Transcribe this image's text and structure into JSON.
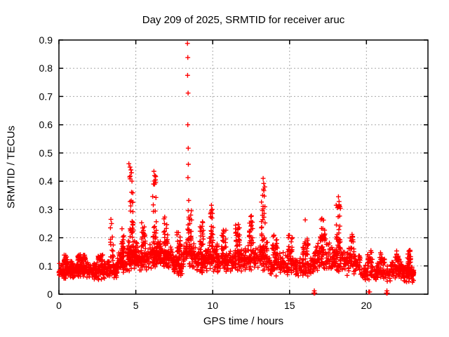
{
  "title": "Day 209 of 2025, SRMTID for receiver aruc",
  "background_color": "#ffffff",
  "chart_data": {
    "type": "scatter",
    "title": "Day 209 of 2025, SRMTID for receiver aruc",
    "xlabel": "GPS time / hours",
    "ylabel": "SRMTID / TECUs",
    "xlim": [
      0,
      24
    ],
    "ylim": [
      0,
      0.9
    ],
    "xtick_values": [
      0,
      5,
      10,
      15,
      20
    ],
    "xtick_labels": [
      "0",
      "5",
      "10",
      "15",
      "20"
    ],
    "ytick_values": [
      0,
      0.1,
      0.2,
      0.3,
      0.4,
      0.5,
      0.6,
      0.7,
      0.8,
      0.9
    ],
    "ytick_labels": [
      "0",
      "0.1",
      "0.2",
      "0.3",
      "0.4",
      "0.5",
      "0.6",
      "0.7",
      "0.8",
      "0.9"
    ],
    "grid": true,
    "grid_style": "dotted",
    "grid_color": "#a8a8a8",
    "marker": "plus",
    "marker_size_px": 7,
    "color": "#ff0000",
    "seed": 7,
    "legend": "none",
    "series": [
      {
        "name": "SRMTID",
        "cluster_format": "[x_start_hours, x_end_hours, n_points, y_bulk_low, y_bulk_high, y_tail_max, tail_peak_x_hours]",
        "clusters": [
          [
            0.0,
            0.7,
            90,
            0.05,
            0.11,
            0.14,
            0.5
          ],
          [
            0.7,
            2.2,
            180,
            0.055,
            0.12,
            0.14,
            1.5
          ],
          [
            2.2,
            3.2,
            110,
            0.05,
            0.12,
            0.145,
            2.7
          ],
          [
            3.2,
            3.8,
            70,
            0.05,
            0.13,
            0.22,
            3.4
          ],
          [
            3.8,
            4.4,
            80,
            0.07,
            0.16,
            0.24,
            4.2
          ],
          [
            4.4,
            5.1,
            120,
            0.08,
            0.2,
            0.44,
            4.7
          ],
          [
            5.1,
            5.9,
            100,
            0.08,
            0.17,
            0.26,
            5.5
          ],
          [
            5.9,
            6.6,
            110,
            0.08,
            0.2,
            0.42,
            6.2
          ],
          [
            6.6,
            7.4,
            100,
            0.08,
            0.18,
            0.3,
            6.9
          ],
          [
            7.4,
            8.1,
            90,
            0.06,
            0.15,
            0.22,
            7.8
          ],
          [
            8.1,
            8.9,
            100,
            0.08,
            0.19,
            0.3,
            8.5
          ],
          [
            8.9,
            9.6,
            90,
            0.07,
            0.17,
            0.26,
            9.3
          ],
          [
            9.6,
            10.3,
            95,
            0.08,
            0.19,
            0.3,
            9.9
          ],
          [
            10.3,
            11.2,
            95,
            0.07,
            0.16,
            0.23,
            10.7
          ],
          [
            11.2,
            12.1,
            100,
            0.07,
            0.17,
            0.25,
            11.6
          ],
          [
            12.1,
            12.9,
            90,
            0.08,
            0.18,
            0.28,
            12.5
          ],
          [
            12.9,
            13.6,
            85,
            0.08,
            0.19,
            0.38,
            13.3
          ],
          [
            13.6,
            14.6,
            95,
            0.06,
            0.16,
            0.22,
            14.0
          ],
          [
            14.6,
            15.6,
            90,
            0.06,
            0.15,
            0.21,
            15.0
          ],
          [
            15.6,
            16.6,
            90,
            0.05,
            0.14,
            0.2,
            16.0
          ],
          [
            16.6,
            17.7,
            115,
            0.07,
            0.19,
            0.27,
            17.2
          ],
          [
            17.7,
            18.6,
            100,
            0.07,
            0.18,
            0.32,
            18.2
          ],
          [
            18.6,
            19.6,
            90,
            0.06,
            0.16,
            0.22,
            19.0
          ],
          [
            19.6,
            20.6,
            80,
            0.04,
            0.11,
            0.16,
            20.3
          ],
          [
            20.6,
            21.6,
            80,
            0.04,
            0.11,
            0.15,
            21.0
          ],
          [
            21.6,
            22.4,
            85,
            0.05,
            0.12,
            0.16,
            22.0
          ],
          [
            22.4,
            23.1,
            110,
            0.04,
            0.11,
            0.16,
            22.8
          ]
        ],
        "outlier_points": [
          [
            8.36,
            0.888
          ],
          [
            8.38,
            0.838
          ],
          [
            8.37,
            0.775
          ],
          [
            8.4,
            0.712
          ],
          [
            8.38,
            0.6
          ],
          [
            8.41,
            0.517
          ],
          [
            8.42,
            0.46
          ],
          [
            8.39,
            0.413
          ],
          [
            8.44,
            0.332
          ],
          [
            4.55,
            0.462
          ],
          [
            4.62,
            0.45
          ],
          [
            4.68,
            0.44
          ],
          [
            4.72,
            0.43
          ],
          [
            4.6,
            0.415
          ],
          [
            4.75,
            0.4
          ],
          [
            6.18,
            0.435
          ],
          [
            6.22,
            0.42
          ],
          [
            6.28,
            0.405
          ],
          [
            6.15,
            0.39
          ],
          [
            13.28,
            0.41
          ],
          [
            13.32,
            0.392
          ],
          [
            13.3,
            0.372
          ],
          [
            13.25,
            0.35
          ],
          [
            18.18,
            0.345
          ],
          [
            18.22,
            0.328
          ],
          [
            18.2,
            0.31
          ],
          [
            9.92,
            0.315
          ],
          [
            9.97,
            0.3
          ],
          [
            3.38,
            0.265
          ],
          [
            3.42,
            0.25
          ],
          [
            3.35,
            0.235
          ],
          [
            16.02,
            0.263
          ],
          [
            16.58,
            0.004
          ],
          [
            16.61,
            0.004
          ],
          [
            16.64,
            0.004
          ],
          [
            16.61,
            0.012
          ],
          [
            20.15,
            0.008
          ],
          [
            20.21,
            0.008
          ],
          [
            21.3,
            0.004
          ],
          [
            21.33,
            0.004
          ],
          [
            21.36,
            0.004
          ],
          [
            21.33,
            0.012
          ]
        ]
      }
    ]
  }
}
